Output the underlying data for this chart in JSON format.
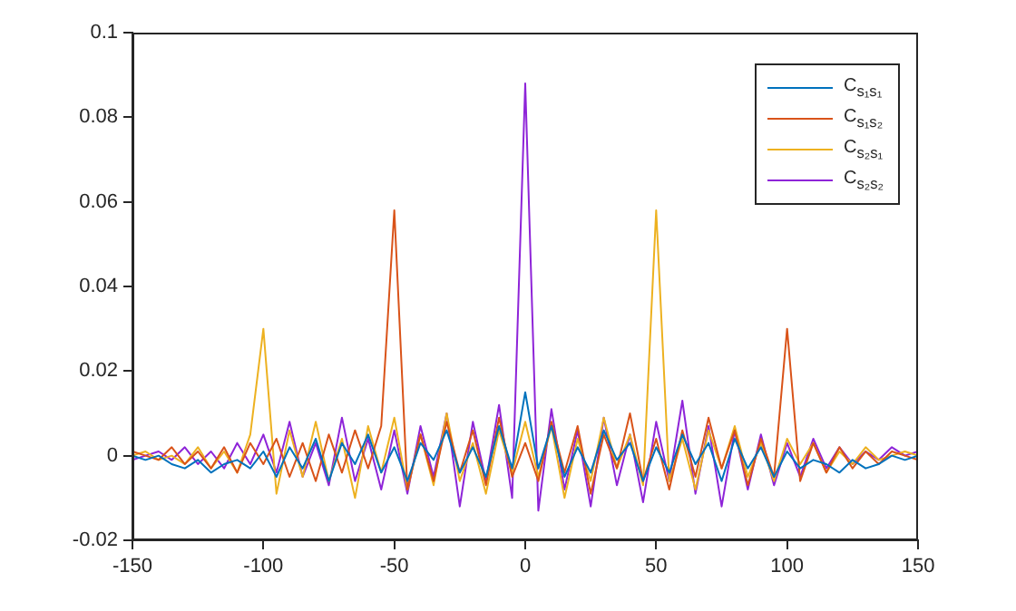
{
  "chart_data": {
    "type": "line",
    "x": [
      -150,
      -145,
      -140,
      -135,
      -130,
      -125,
      -120,
      -115,
      -110,
      -105,
      -100,
      -95,
      -90,
      -85,
      -80,
      -75,
      -70,
      -65,
      -60,
      -55,
      -50,
      -45,
      -40,
      -35,
      -30,
      -25,
      -20,
      -15,
      -10,
      -5,
      0,
      5,
      10,
      15,
      20,
      25,
      30,
      35,
      40,
      45,
      50,
      55,
      60,
      65,
      70,
      75,
      80,
      85,
      90,
      95,
      100,
      105,
      110,
      115,
      120,
      125,
      130,
      135,
      140,
      145,
      150
    ],
    "series": [
      {
        "name": "C$_{s₁s₁}$",
        "color": "#0072bd",
        "values": [
          0,
          -0.001,
          0,
          -0.002,
          -0.003,
          -0.001,
          -0.004,
          -0.002,
          -0.001,
          -0.003,
          0.001,
          -0.005,
          0.002,
          -0.003,
          0.004,
          -0.006,
          0.003,
          -0.002,
          0.005,
          -0.004,
          0.002,
          -0.006,
          0.003,
          -0.001,
          0.006,
          -0.004,
          0.002,
          -0.005,
          0.007,
          -0.003,
          0.015,
          -0.003,
          0.007,
          -0.005,
          0.002,
          -0.004,
          0.006,
          -0.001,
          0.003,
          -0.006,
          0.002,
          -0.004,
          0.005,
          -0.002,
          0.003,
          -0.006,
          0.004,
          -0.003,
          0.002,
          -0.005,
          0.001,
          -0.003,
          -0.001,
          -0.002,
          -0.004,
          -0.001,
          -0.003,
          -0.002,
          0,
          -0.001,
          0
        ]
      },
      {
        "name": "C$_{s₁s₂}$",
        "color": "#d95319",
        "values": [
          0.001,
          0,
          -0.001,
          0.002,
          -0.002,
          0.001,
          -0.003,
          0.002,
          -0.004,
          0.003,
          -0.002,
          0.004,
          -0.005,
          0.003,
          -0.006,
          0.005,
          -0.004,
          0.006,
          -0.003,
          0.007,
          0.058,
          -0.008,
          0.005,
          -0.006,
          0.008,
          -0.004,
          0.006,
          -0.007,
          0.009,
          -0.005,
          0.003,
          -0.006,
          0.008,
          -0.004,
          0.007,
          -0.009,
          0.005,
          -0.003,
          0.01,
          -0.006,
          0.004,
          -0.008,
          0.006,
          -0.005,
          0.009,
          -0.003,
          0.006,
          -0.007,
          0.004,
          -0.005,
          0.03,
          -0.006,
          0.003,
          -0.004,
          0.002,
          -0.003,
          0.001,
          -0.002,
          0.001,
          0,
          -0.001
        ]
      },
      {
        "name": "C$_{s₂s₁}$",
        "color": "#edb120",
        "values": [
          0,
          0.001,
          -0.001,
          0,
          -0.002,
          0.002,
          -0.003,
          0.001,
          -0.004,
          0.005,
          0.03,
          -0.009,
          0.006,
          -0.005,
          0.008,
          -0.006,
          0.004,
          -0.01,
          0.007,
          -0.004,
          0.009,
          -0.008,
          0.005,
          -0.007,
          0.01,
          -0.006,
          0.003,
          -0.009,
          0.006,
          -0.004,
          0.008,
          -0.005,
          0.007,
          -0.01,
          0.004,
          -0.006,
          0.009,
          -0.003,
          0.005,
          -0.007,
          0.058,
          -0.006,
          0.004,
          -0.008,
          0.006,
          -0.003,
          0.007,
          -0.005,
          0.003,
          -0.006,
          0.004,
          -0.002,
          0.003,
          -0.004,
          0.001,
          -0.002,
          0.002,
          -0.001,
          0,
          0.001,
          0
        ]
      },
      {
        "name": "C$_{s₂s₂}$",
        "color": "#8e24d8",
        "values": [
          -0.001,
          0,
          0.001,
          -0.001,
          0.002,
          -0.002,
          0.001,
          -0.003,
          0.003,
          -0.002,
          0.005,
          -0.004,
          0.008,
          -0.005,
          0.003,
          -0.007,
          0.009,
          -0.006,
          0.004,
          -0.008,
          0.006,
          -0.009,
          0.007,
          -0.005,
          0.01,
          -0.012,
          0.008,
          -0.006,
          0.012,
          -0.01,
          0.088,
          -0.013,
          0.011,
          -0.008,
          0.006,
          -0.012,
          0.009,
          -0.007,
          0.005,
          -0.011,
          0.008,
          -0.006,
          0.013,
          -0.009,
          0.007,
          -0.012,
          0.006,
          -0.008,
          0.005,
          -0.007,
          0.003,
          -0.005,
          0.004,
          -0.003,
          0.002,
          -0.002,
          0.001,
          -0.001,
          0.002,
          0,
          0.001
        ]
      }
    ],
    "xlim": [
      -150,
      150
    ],
    "xticks": [
      -150,
      -100,
      -50,
      0,
      50,
      100,
      150
    ],
    "ylim": [
      -0.02,
      0.1
    ],
    "yticks": [
      -0.02,
      0,
      0.02,
      0.04,
      0.06,
      0.08,
      0.1
    ],
    "grid": false,
    "legend": "top right",
    "marker": "none",
    "line_style": "solid"
  }
}
